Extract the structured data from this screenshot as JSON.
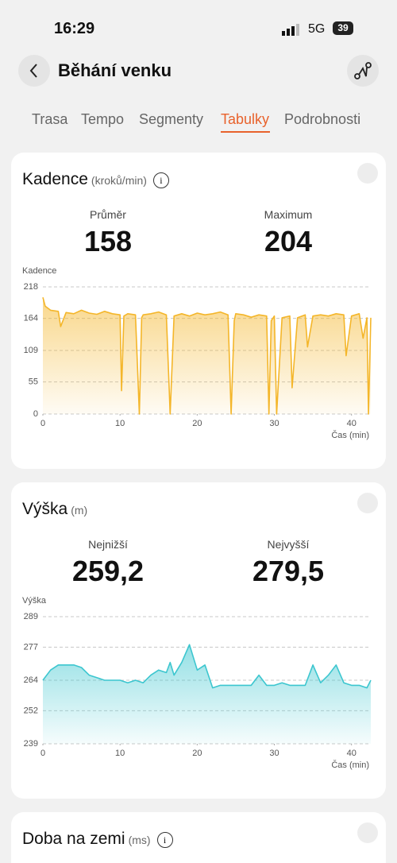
{
  "status_bar": {
    "time": "16:29",
    "network": "5G",
    "battery": "39"
  },
  "header": {
    "title": "Běhání venku"
  },
  "tabs": [
    "Trasa",
    "Tempo",
    "Segmenty",
    "Tabulky",
    "Podrobnosti"
  ],
  "cards": [
    {
      "title": "Kadence",
      "unit": "(kroků/min)",
      "stats": [
        {
          "label": "Průměr",
          "value": "158"
        },
        {
          "label": "Maximum",
          "value": "204"
        }
      ]
    },
    {
      "title": "Výška",
      "unit": "(m)",
      "stats": [
        {
          "label": "Nejnižší",
          "value": "259,2"
        },
        {
          "label": "Nejvyšší",
          "value": "279,5"
        }
      ]
    },
    {
      "title": "Doba na zemi",
      "unit": "(ms)"
    }
  ],
  "chart_data": [
    {
      "type": "area",
      "y_label": "Kadence",
      "x_label": "Čas (min)",
      "color": "#f4b62a",
      "grid": true,
      "xlim": [
        0,
        42.5
      ],
      "xticks": [
        0,
        10,
        20,
        30,
        40
      ],
      "ylim": [
        0,
        218
      ],
      "yticks": [
        0,
        55,
        109,
        164,
        218
      ],
      "x": [
        0,
        0.3,
        1,
        2,
        2.3,
        3,
        4,
        5,
        6,
        7,
        8,
        9,
        10,
        10.2,
        10.5,
        11,
        12,
        12.5,
        12.8,
        13,
        14,
        15,
        16,
        16.5,
        17,
        18,
        19,
        20,
        21,
        22,
        23,
        24,
        24.4,
        24.8,
        25,
        26,
        27,
        28,
        29,
        29.3,
        29.6,
        30,
        30.3,
        31,
        32,
        32.3,
        33,
        34,
        34.3,
        35,
        36,
        37,
        38,
        39,
        39.3,
        40,
        41,
        41.5,
        42,
        42.2,
        42.5
      ],
      "values": [
        200,
        185,
        178,
        176,
        150,
        174,
        172,
        178,
        173,
        171,
        176,
        172,
        170,
        40,
        168,
        172,
        170,
        0,
        165,
        170,
        172,
        175,
        170,
        0,
        168,
        172,
        168,
        173,
        170,
        172,
        175,
        170,
        0,
        160,
        172,
        170,
        166,
        170,
        168,
        0,
        160,
        168,
        0,
        165,
        168,
        45,
        165,
        170,
        115,
        168,
        170,
        168,
        172,
        170,
        100,
        168,
        172,
        130,
        165,
        0,
        165
      ]
    },
    {
      "type": "area",
      "y_label": "Výška",
      "x_label": "Čas (min)",
      "color": "#3cc6cf",
      "grid": true,
      "xlim": [
        0,
        42.5
      ],
      "xticks": [
        0,
        10,
        20,
        30,
        40
      ],
      "ylim": [
        239,
        289
      ],
      "yticks": [
        239,
        252,
        264,
        277,
        289
      ],
      "x": [
        0,
        1,
        2,
        3,
        4,
        5,
        6,
        7,
        8,
        9,
        10,
        11,
        12,
        13,
        14,
        15,
        16,
        16.5,
        17,
        18,
        19,
        20,
        21,
        22,
        23,
        24,
        25,
        26,
        27,
        28,
        29,
        30,
        31,
        32,
        33,
        34,
        35,
        36,
        37,
        38,
        39,
        40,
        41,
        42,
        42.5
      ],
      "values": [
        264,
        268,
        270,
        270,
        270,
        269,
        266,
        265,
        264,
        264,
        264,
        263,
        264,
        263,
        266,
        268,
        267,
        271,
        266,
        271,
        278,
        268,
        270,
        261,
        262,
        262,
        262,
        262,
        262,
        266,
        262,
        262,
        263,
        262,
        262,
        262,
        270,
        263,
        266,
        270,
        263,
        262,
        262,
        261,
        264
      ]
    }
  ]
}
